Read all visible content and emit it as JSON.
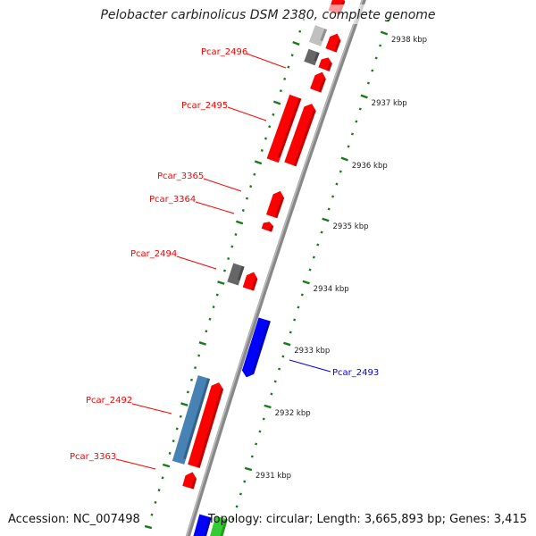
{
  "title": "Pelobacter carbinolicus DSM 2380, complete genome",
  "accession": "Accession: NC_007498",
  "topology": "Topology: circular; Length: 3,665,893 bp; Genes: 3,415",
  "ticks": [
    "2938 kbp",
    "2937 kbp",
    "2936 kbp",
    "2935 kbp",
    "2934 kbp",
    "2933 kbp",
    "2932 kbp",
    "2931 kbp"
  ],
  "labels": [
    {
      "text": "Pcar_2496",
      "color": "#ff0000"
    },
    {
      "text": "Pcar_2495",
      "color": "#ff0000"
    },
    {
      "text": "Pcar_3365",
      "color": "#ff0000"
    },
    {
      "text": "Pcar_3364",
      "color": "#ff0000"
    },
    {
      "text": "Pcar_2494",
      "color": "#ff0000"
    },
    {
      "text": "Pcar_2492",
      "color": "#ff0000"
    },
    {
      "text": "Pcar_3363",
      "color": "#ff0000"
    },
    {
      "text": "Pcar_2493",
      "color": "#0000ff"
    }
  ],
  "colors": {
    "red": "#ff0000",
    "blue": "#0000ff",
    "steel": "#4682b4",
    "darkgray": "#666666",
    "lightgray": "#c0c0c0",
    "green": "#33cc33",
    "tick": "#1a7a1a",
    "backbone": "#888888"
  }
}
